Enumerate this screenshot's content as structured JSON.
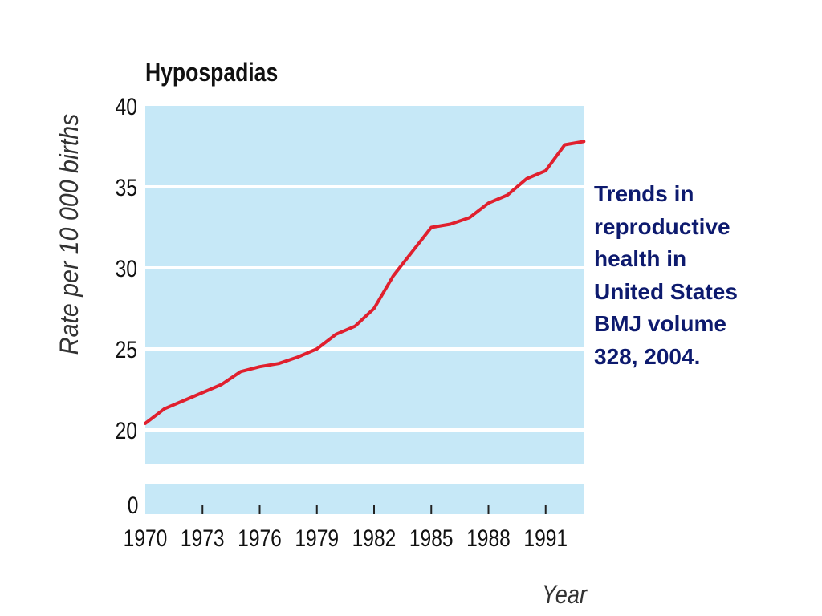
{
  "chart_data": {
    "type": "line",
    "title": "Hypospadias",
    "xlabel": "Year",
    "ylabel": "Rate per 10 000 births",
    "x_ticks": [
      "1970",
      "1973",
      "1976",
      "1979",
      "1982",
      "1985",
      "1988",
      "1991"
    ],
    "y_ticks": [
      "20",
      "25",
      "30",
      "35",
      "40"
    ],
    "y_break_tick": "0",
    "xlim": [
      1970,
      1993
    ],
    "ylim": [
      18,
      40
    ],
    "y_axis_break": true,
    "grid": true,
    "series": [
      {
        "color": "#e0202e",
        "x": [
          1970,
          1971,
          1972,
          1973,
          1974,
          1975,
          1976,
          1977,
          1978,
          1979,
          1980,
          1981,
          1982,
          1983,
          1984,
          1985,
          1986,
          1987,
          1988,
          1989,
          1990,
          1991,
          1992,
          1993
        ],
        "y": [
          20.4,
          21.3,
          21.8,
          22.3,
          22.8,
          23.6,
          23.9,
          24.1,
          24.5,
          25.0,
          25.9,
          26.4,
          27.5,
          29.5,
          31.0,
          32.5,
          32.7,
          33.1,
          34.0,
          34.5,
          35.5,
          36.0,
          37.6,
          37.8
        ]
      }
    ]
  },
  "caption": {
    "line1": "Trends in",
    "line2": "reproductive",
    "line3": "health in",
    "line4": "United States",
    "line5": "BMJ volume",
    "line6": "328, 2004."
  },
  "colors": {
    "plot_background": "#c6e8f7",
    "gridline": "#ffffff",
    "line": "#e0202e",
    "caption_text": "#0d1a6e"
  }
}
